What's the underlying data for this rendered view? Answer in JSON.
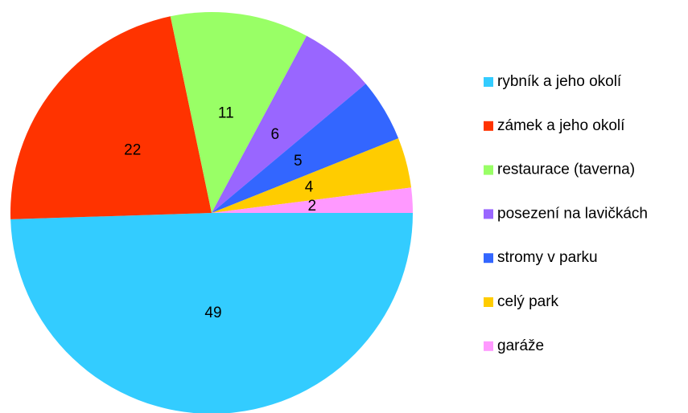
{
  "chart_data": {
    "type": "pie",
    "categories": [
      "rybník a jeho okolí",
      "zámek a jeho okolí",
      "restaurace (taverna)",
      "posezení na lavičkách",
      "stromy v parku",
      "celý park",
      "garáže"
    ],
    "values": [
      49,
      22,
      11,
      6,
      5,
      4,
      2
    ],
    "colors": [
      "#33ccff",
      "#ff3300",
      "#99ff66",
      "#9966ff",
      "#3366ff",
      "#ffcc00",
      "#ff99ff"
    ],
    "legend": "right"
  }
}
